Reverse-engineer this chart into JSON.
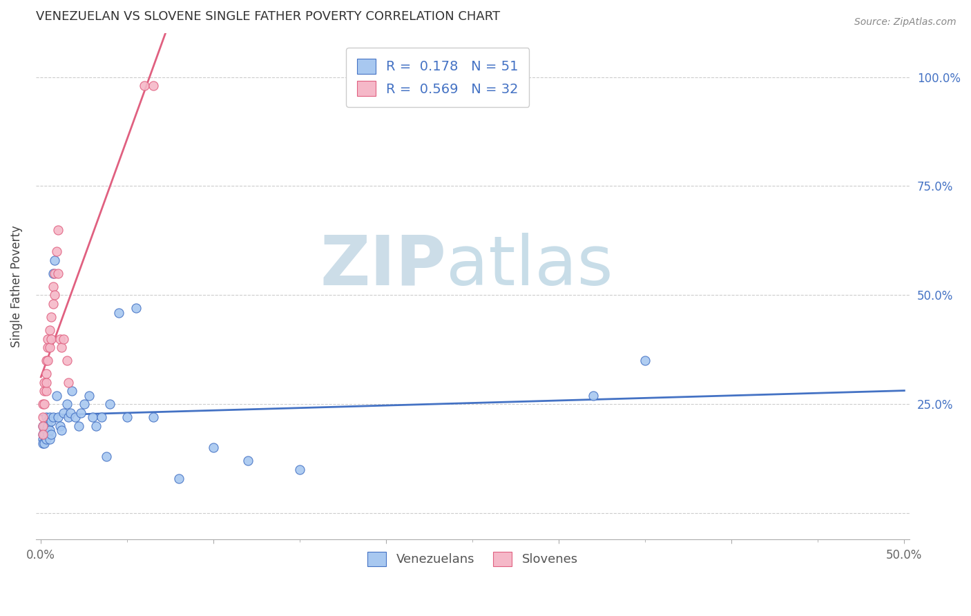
{
  "title": "VENEZUELAN VS SLOVENE SINGLE FATHER POVERTY CORRELATION CHART",
  "source": "Source: ZipAtlas.com",
  "ylabel": "Single Father Poverty",
  "venezuelan_color": "#a8c8f0",
  "slovene_color": "#f5b8c8",
  "venezuelan_line_color": "#4472c4",
  "slovene_line_color": "#e06080",
  "legend_label_1": "Venezuelans",
  "legend_label_2": "Slovenes",
  "r_venezuelan": 0.178,
  "n_venezuelan": 51,
  "r_slovene": 0.569,
  "n_slovene": 32,
  "background_color": "#ffffff",
  "venezuelan_scatter_x": [
    0.001,
    0.001,
    0.001,
    0.001,
    0.002,
    0.002,
    0.002,
    0.002,
    0.003,
    0.003,
    0.003,
    0.004,
    0.004,
    0.004,
    0.005,
    0.005,
    0.005,
    0.006,
    0.006,
    0.007,
    0.007,
    0.008,
    0.009,
    0.01,
    0.011,
    0.012,
    0.013,
    0.015,
    0.016,
    0.017,
    0.018,
    0.02,
    0.022,
    0.023,
    0.025,
    0.028,
    0.03,
    0.032,
    0.035,
    0.038,
    0.04,
    0.045,
    0.05,
    0.055,
    0.065,
    0.08,
    0.1,
    0.12,
    0.15,
    0.32,
    0.35
  ],
  "venezuelan_scatter_y": [
    0.18,
    0.2,
    0.17,
    0.16,
    0.19,
    0.18,
    0.2,
    0.16,
    0.22,
    0.19,
    0.17,
    0.21,
    0.18,
    0.2,
    0.22,
    0.19,
    0.17,
    0.21,
    0.18,
    0.22,
    0.55,
    0.58,
    0.27,
    0.22,
    0.2,
    0.19,
    0.23,
    0.25,
    0.22,
    0.23,
    0.28,
    0.22,
    0.2,
    0.23,
    0.25,
    0.27,
    0.22,
    0.2,
    0.22,
    0.13,
    0.25,
    0.46,
    0.22,
    0.47,
    0.22,
    0.08,
    0.15,
    0.12,
    0.1,
    0.27,
    0.35
  ],
  "slovene_scatter_x": [
    0.001,
    0.001,
    0.001,
    0.001,
    0.002,
    0.002,
    0.002,
    0.003,
    0.003,
    0.003,
    0.003,
    0.004,
    0.004,
    0.004,
    0.005,
    0.005,
    0.006,
    0.006,
    0.007,
    0.007,
    0.008,
    0.008,
    0.009,
    0.01,
    0.01,
    0.011,
    0.012,
    0.013,
    0.015,
    0.016,
    0.06,
    0.065
  ],
  "slovene_scatter_y": [
    0.22,
    0.25,
    0.2,
    0.18,
    0.28,
    0.3,
    0.25,
    0.35,
    0.32,
    0.28,
    0.3,
    0.38,
    0.35,
    0.4,
    0.42,
    0.38,
    0.45,
    0.4,
    0.48,
    0.52,
    0.55,
    0.5,
    0.6,
    0.65,
    0.55,
    0.4,
    0.38,
    0.4,
    0.35,
    0.3,
    0.98,
    0.98
  ]
}
